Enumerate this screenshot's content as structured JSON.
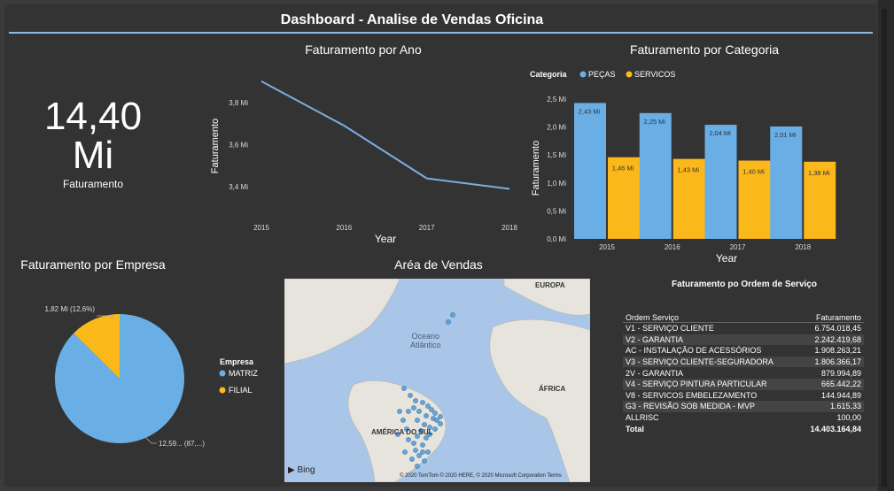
{
  "header": {
    "title": "Dashboard - Analise de Vendas Oficina"
  },
  "kpi": {
    "value_line1": "14,40",
    "value_line2": "Mi",
    "label": "Faturamento"
  },
  "year_chart": {
    "title": "Faturamento por Ano",
    "chart_data": {
      "type": "line",
      "x": [
        "2015",
        "2016",
        "2017",
        "2018"
      ],
      "values": [
        3.9,
        3.69,
        3.44,
        3.39
      ],
      "xlabel": "Year",
      "ylabel": "Faturamento",
      "y_ticks": [
        "3,4 Mi",
        "3,6 Mi",
        "3,8 Mi"
      ],
      "y_tick_values": [
        3.4,
        3.6,
        3.8
      ],
      "ylim": [
        3.3,
        3.95
      ],
      "color": "#7aaee0"
    }
  },
  "category_chart": {
    "title": "Faturamento por Categoria",
    "legend_title": "Categoria",
    "chart_data": {
      "type": "bar",
      "categories": [
        "2015",
        "2016",
        "2017",
        "2018"
      ],
      "series": [
        {
          "name": "PEÇAS",
          "values": [
            2.43,
            2.25,
            2.04,
            2.01
          ],
          "labels": [
            "2,43 Mi",
            "2,25 Mi",
            "2,04 Mi",
            "2,01 Mi"
          ],
          "color": "#6aaee6"
        },
        {
          "name": "SERVICOS",
          "values": [
            1.46,
            1.43,
            1.4,
            1.38
          ],
          "labels": [
            "1,46 Mi",
            "1,43 Mi",
            "1,40 Mi",
            "1,38 Mi"
          ],
          "color": "#fbb81a"
        }
      ],
      "xlabel": "Year",
      "ylabel": "Faturamento",
      "y_ticks": [
        "0,0 Mi",
        "0,5 Mi",
        "1,0 Mi",
        "1,5 Mi",
        "2,0 Mi",
        "2,5 Mi"
      ],
      "y_tick_values": [
        0,
        0.5,
        1.0,
        1.5,
        2.0,
        2.5
      ],
      "ylim": [
        0,
        2.5
      ],
      "legend": "top-left"
    }
  },
  "company_chart": {
    "title": "Faturamento por Empresa",
    "legend_title": "Empresa",
    "chart_data": {
      "type": "pie",
      "slices": [
        {
          "name": "MATRIZ",
          "value": 87.4,
          "label": "12,59... (87,...)",
          "color": "#6aaee6"
        },
        {
          "name": "FILIAL",
          "value": 12.6,
          "label": "1,82 Mi (12,6%)",
          "color": "#fbb81a"
        }
      ],
      "legend": "right"
    }
  },
  "map_card": {
    "title": "Aréa de Vendas",
    "labels": {
      "europe": "EUROPA",
      "ocean_line1": "Oceano",
      "ocean_line2": "Atlântico",
      "africa": "ÁFRICA",
      "south_america": "AMÉRICA DO SUL"
    },
    "bing": "Bing",
    "attribution": "© 2020 TomTom © 2020 HERE, © 2020 Microsoft Corporation",
    "terms": "Terms"
  },
  "os_table": {
    "title": "Faturamento po Ordem de Serviço",
    "columns": [
      "Ordem Serviço",
      "Faturamento"
    ],
    "rows": [
      [
        "V1 - SERVIÇO CLIENTE",
        "6.754.018,45"
      ],
      [
        "V2 - GARANTIA",
        "2.242.419,68"
      ],
      [
        "AC - INSTALAÇÃO DE ACESSÓRIOS",
        "1.908.263,21"
      ],
      [
        "V3 - SERVIÇO CLIENTE-SEGURADORA",
        "1.806.366,17"
      ],
      [
        "2V - GARANTIA",
        "879.994,89"
      ],
      [
        "V4 - SERVIÇO PINTURA PARTICULAR",
        "665.442,22"
      ],
      [
        "V8 - SERVICOS EMBELEZAMENTO",
        "144.944,89"
      ],
      [
        "G3 - REVISÃO SOB MEDIDA - MVP",
        "1.615,33"
      ],
      [
        "ALLRISC",
        "100,00"
      ]
    ],
    "total": [
      "Total",
      "14.403.164,84"
    ]
  }
}
